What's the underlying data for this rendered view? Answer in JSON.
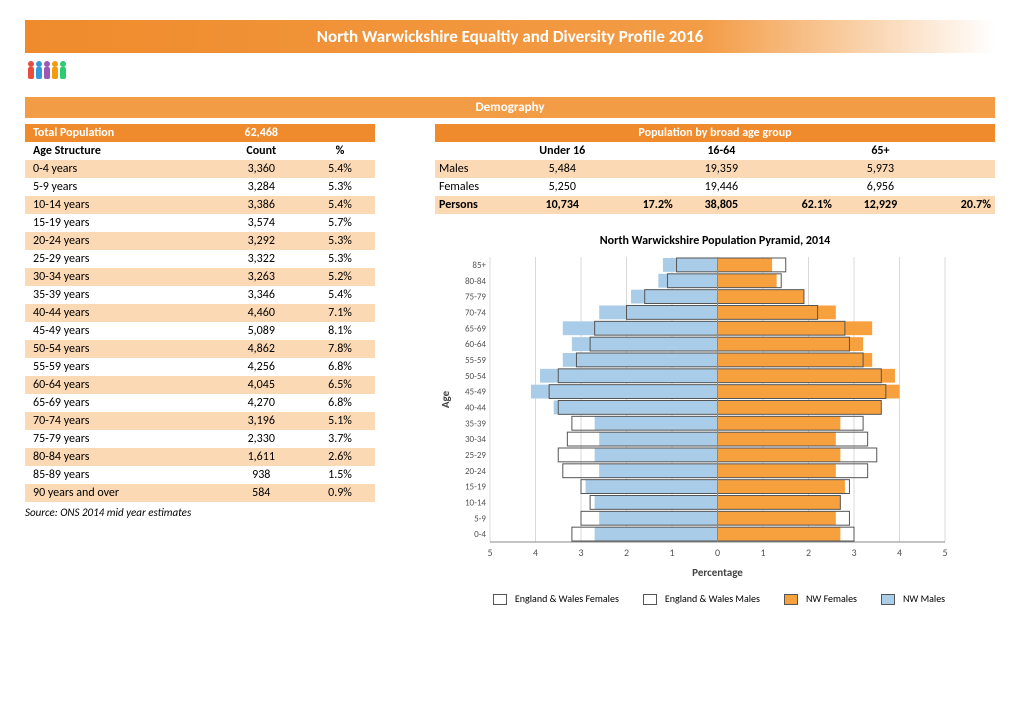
{
  "title": "North Warwickshire Equaltiy and Diversity Profile 2016",
  "section": "Demography",
  "left": {
    "header": {
      "label": "Total Population",
      "value": "62,468"
    },
    "cols": [
      "Age Structure",
      "Count",
      "%"
    ],
    "rows": [
      [
        "0-4 years",
        "3,360",
        "5.4%"
      ],
      [
        "5-9 years",
        "3,284",
        "5.3%"
      ],
      [
        "10-14 years",
        "3,386",
        "5.4%"
      ],
      [
        "15-19 years",
        "3,574",
        "5.7%"
      ],
      [
        "20-24 years",
        "3,292",
        "5.3%"
      ],
      [
        "25-29 years",
        "3,322",
        "5.3%"
      ],
      [
        "30-34 years",
        "3,263",
        "5.2%"
      ],
      [
        "35-39 years",
        "3,346",
        "5.4%"
      ],
      [
        "40-44 years",
        "4,460",
        "7.1%"
      ],
      [
        "45-49 years",
        "5,089",
        "8.1%"
      ],
      [
        "50-54 years",
        "4,862",
        "7.8%"
      ],
      [
        "55-59 years",
        "4,256",
        "6.8%"
      ],
      [
        "60-64 years",
        "4,045",
        "6.5%"
      ],
      [
        "65-69 years",
        "4,270",
        "6.8%"
      ],
      [
        "70-74 years",
        "3,196",
        "5.1%"
      ],
      [
        "75-79 years",
        "2,330",
        "3.7%"
      ],
      [
        "80-84 years",
        "1,611",
        "2.6%"
      ],
      [
        "85-89 years",
        "938",
        "1.5%"
      ],
      [
        "90 years and over",
        "584",
        "0.9%"
      ]
    ],
    "source": "Source: ONS 2014 mid year estimates"
  },
  "right": {
    "header": "Population by broad age group",
    "cols": [
      "",
      "Under 16",
      "",
      "16-64",
      "",
      "65+",
      ""
    ],
    "rows": [
      [
        "Males",
        "5,484",
        "",
        "19,359",
        "",
        "5,973",
        ""
      ],
      [
        "Females",
        "5,250",
        "",
        "19,446",
        "",
        "6,956",
        ""
      ]
    ],
    "persons": [
      "Persons",
      "10,734",
      "17.2%",
      "38,805",
      "62.1%",
      "12,929",
      "20.7%"
    ]
  },
  "chart": {
    "title": "North Warwickshire Population Pyramid, 2014",
    "xlabel": "Percentage",
    "ylabel": "Age",
    "xticks": [
      5,
      4,
      3,
      2,
      1,
      0,
      1,
      2,
      3,
      4,
      5
    ],
    "age_labels": [
      "0-4",
      "5-9",
      "10-14",
      "15-19",
      "20-24",
      "25-29",
      "30-34",
      "35-39",
      "40-44",
      "45-49",
      "50-54",
      "55-59",
      "60-64",
      "65-69",
      "70-74",
      "75-79",
      "80-84",
      "85+"
    ],
    "colors": {
      "nw_males": "#a9cce8",
      "nw_females": "#f7a03e",
      "ew_outline": "#555555",
      "grid": "#d9d9d9",
      "axis": "#888888",
      "bg": "#ffffff"
    },
    "legend": [
      "England & Wales Females",
      "England & Wales Males",
      "NW Females",
      "NW Males"
    ],
    "series": {
      "nw_males": [
        2.7,
        2.6,
        2.7,
        2.9,
        2.6,
        2.7,
        2.6,
        2.7,
        3.6,
        4.1,
        3.9,
        3.4,
        3.2,
        3.4,
        2.6,
        1.9,
        1.3,
        1.2
      ],
      "nw_females": [
        2.7,
        2.6,
        2.7,
        2.8,
        2.6,
        2.7,
        2.6,
        2.7,
        3.6,
        4.0,
        3.9,
        3.4,
        3.2,
        3.4,
        2.6,
        1.9,
        1.3,
        1.2
      ],
      "ew_males": [
        3.2,
        3.0,
        2.8,
        3.0,
        3.4,
        3.5,
        3.3,
        3.2,
        3.5,
        3.7,
        3.5,
        3.1,
        2.8,
        2.7,
        2.0,
        1.6,
        1.1,
        0.9
      ],
      "ew_females": [
        3.0,
        2.9,
        2.7,
        2.9,
        3.3,
        3.5,
        3.3,
        3.2,
        3.6,
        3.7,
        3.6,
        3.2,
        2.9,
        2.8,
        2.2,
        1.9,
        1.4,
        1.5
      ]
    }
  }
}
